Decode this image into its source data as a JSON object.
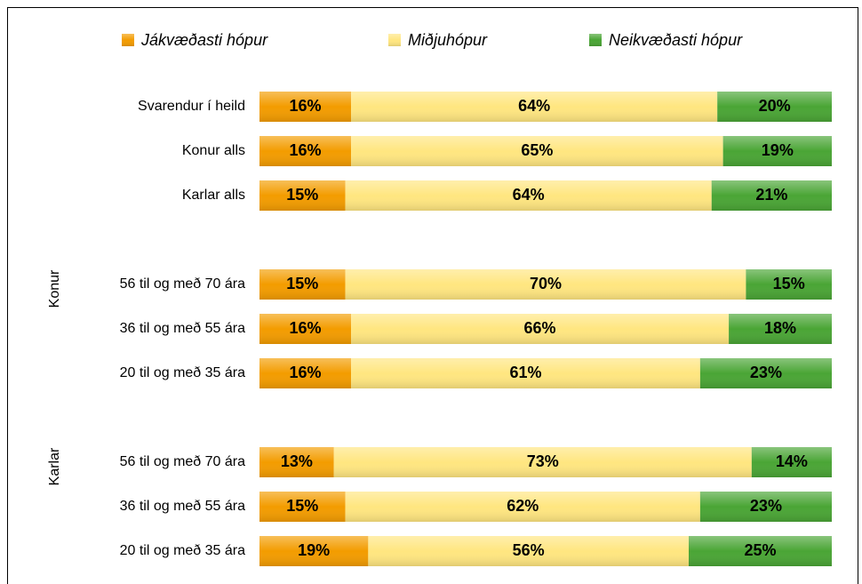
{
  "chart_data": {
    "type": "stacked_bar_100",
    "orientation": "horizontal",
    "categories": [
      "Svarendur í heild",
      "Konur alls",
      "Karlar alls",
      null,
      "56 til og með 70 ára",
      "36 til og með 55 ára",
      "20 til og með 35 ára",
      null,
      "56 til og með 70 ára",
      "36 til og með 55 ára",
      "20 til og með 35 ára"
    ],
    "groups": [
      {
        "name": "Konur",
        "start": 4,
        "end": 6
      },
      {
        "name": "Karlar",
        "start": 8,
        "end": 10
      }
    ],
    "xlim": [
      0,
      100
    ],
    "legend": "top",
    "series": [
      {
        "name": "Jákvæðasti hópur",
        "color": "#f39c00",
        "values": [
          16,
          16,
          15,
          null,
          15,
          16,
          16,
          null,
          13,
          15,
          19
        ],
        "value_labels": [
          "16%",
          "16%",
          "15%",
          null,
          "15%",
          "16%",
          "16%",
          null,
          "13%",
          "15%",
          "19%"
        ]
      },
      {
        "name": "Miðjuhópur",
        "color": "#ffe680",
        "values": [
          64,
          65,
          64,
          null,
          70,
          66,
          61,
          null,
          73,
          62,
          56
        ],
        "value_labels": [
          "64%",
          "65%",
          "64%",
          null,
          "70%",
          "66%",
          "61%",
          null,
          "73%",
          "62%",
          "56%"
        ]
      },
      {
        "name": "Neikvæðasti hópur",
        "color": "#4aa535",
        "values": [
          20,
          19,
          21,
          null,
          15,
          18,
          23,
          null,
          14,
          23,
          25
        ],
        "value_labels": [
          "20%",
          "19%",
          "21%",
          null,
          "15%",
          "18%",
          "23%",
          null,
          "14%",
          "23%",
          "25%"
        ]
      }
    ]
  }
}
